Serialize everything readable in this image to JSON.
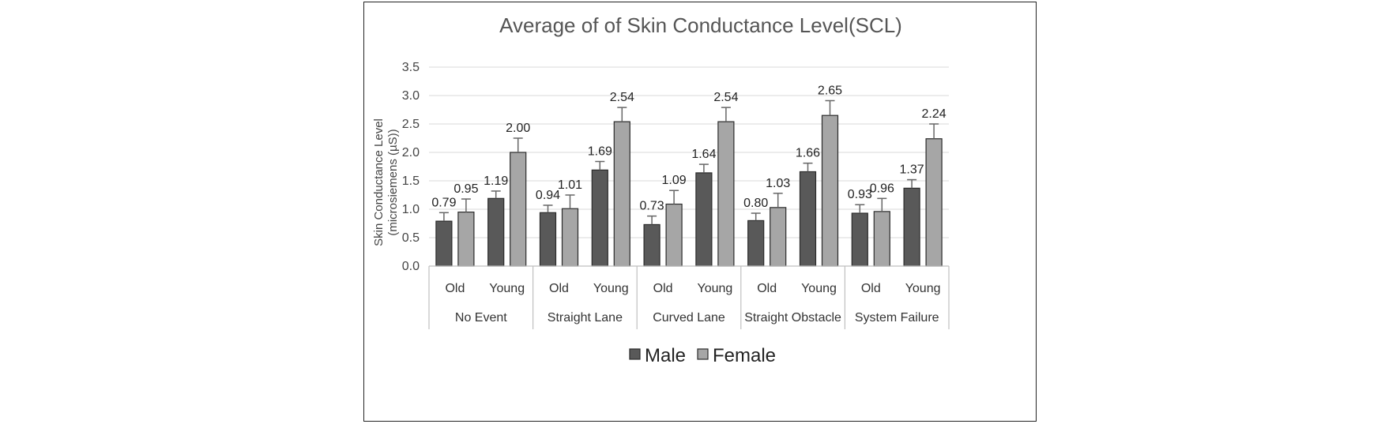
{
  "chart_data": {
    "type": "bar",
    "title": "Average of of Skin Conductance Level(SCL)",
    "ylabel_line1": "Skin Conductance Level",
    "ylabel_line2": "(microsiemens  (µS))",
    "ylim": [
      0,
      3.5
    ],
    "yticks": [
      "0.0",
      "0.5",
      "1.0",
      "1.5",
      "2.0",
      "2.5",
      "3.0",
      "3.5"
    ],
    "groups": [
      "No Event",
      "Straight Lane",
      "Curved Lane",
      "Straight Obstacle",
      "System Failure"
    ],
    "subgroups": [
      "Old",
      "Young"
    ],
    "series": [
      {
        "name": "Male",
        "color": "#595959",
        "values": [
          0.79,
          1.19,
          0.94,
          1.69,
          0.73,
          1.64,
          0.8,
          1.66,
          0.93,
          1.37
        ],
        "labels": [
          "0.79",
          "1.19",
          "0.94",
          "1.69",
          "0.73",
          "1.64",
          "0.80",
          "1.66",
          "0.93",
          "1.37"
        ],
        "errors": [
          0.15,
          0.13,
          0.13,
          0.15,
          0.15,
          0.15,
          0.13,
          0.15,
          0.15,
          0.15
        ]
      },
      {
        "name": "Female",
        "color": "#a6a6a6",
        "values": [
          0.95,
          2.0,
          1.01,
          2.54,
          1.09,
          2.54,
          1.03,
          2.65,
          0.96,
          2.24
        ],
        "labels": [
          "0.95",
          "2.00",
          "1.01",
          "2.54",
          "1.09",
          "2.54",
          "1.03",
          "2.65",
          "0.96",
          "2.24"
        ],
        "errors": [
          0.23,
          0.25,
          0.24,
          0.25,
          0.24,
          0.25,
          0.25,
          0.26,
          0.23,
          0.26
        ]
      }
    ],
    "legend_position": "bottom"
  }
}
